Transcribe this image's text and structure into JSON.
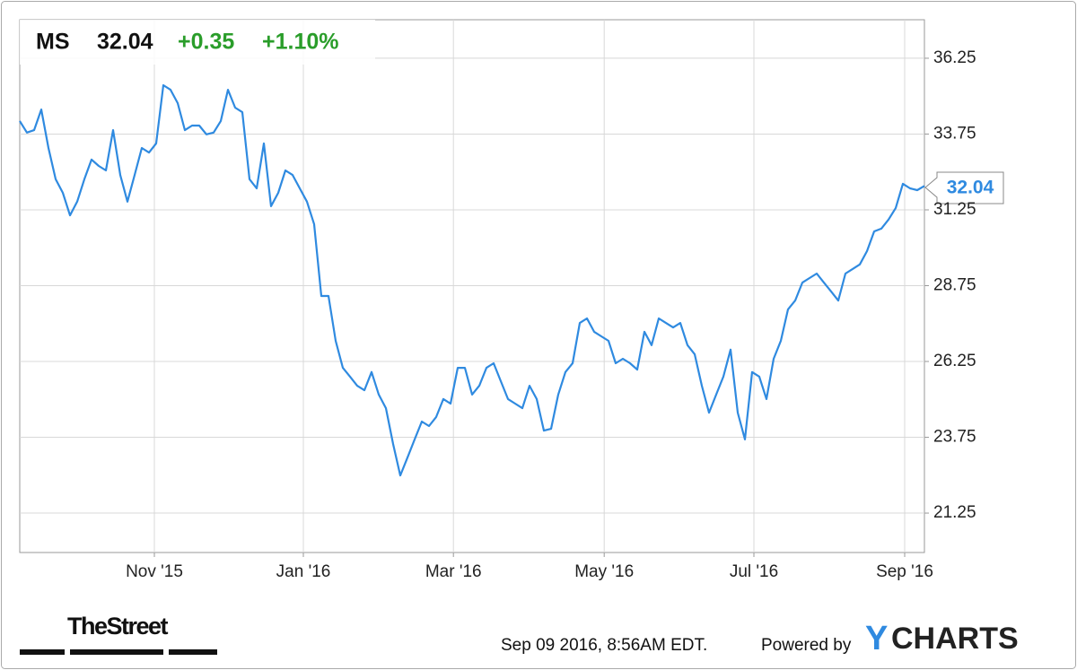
{
  "header": {
    "ticker": "MS",
    "price": "32.04",
    "change": "+0.35",
    "change_pct": "+1.10%"
  },
  "chart_data": {
    "type": "line",
    "series": [
      {
        "name": "MS",
        "color": "#2f8ae0",
        "values": [
          34.18,
          33.8,
          33.88,
          34.56,
          33.29,
          32.26,
          31.81,
          31.07,
          31.52,
          32.26,
          32.91,
          32.7,
          32.55,
          33.88,
          32.4,
          31.52,
          32.4,
          33.29,
          33.14,
          33.44,
          35.36,
          35.21,
          34.77,
          33.88,
          34.03,
          34.03,
          33.74,
          33.8,
          34.18,
          35.21,
          34.62,
          34.47,
          32.26,
          31.96,
          33.44,
          31.37,
          31.81,
          32.55,
          32.4,
          31.96,
          31.52,
          30.78,
          28.41,
          28.41,
          26.93,
          26.04,
          25.75,
          25.45,
          25.3,
          25.9,
          25.16,
          24.71,
          23.53,
          22.49,
          23.08,
          23.68,
          24.27,
          24.12,
          24.42,
          25.01,
          24.86,
          26.04,
          26.04,
          25.16,
          25.45,
          26.04,
          26.19,
          25.6,
          25.01,
          24.86,
          24.71,
          25.45,
          25.01,
          23.97,
          24.03,
          25.16,
          25.9,
          26.19,
          27.52,
          27.67,
          27.23,
          27.08,
          26.93,
          26.19,
          26.34,
          26.19,
          25.98,
          27.23,
          26.79,
          27.67,
          27.52,
          27.37,
          27.52,
          26.79,
          26.49,
          25.45,
          24.56,
          25.16,
          25.75,
          26.64,
          24.56,
          23.68,
          25.9,
          25.75,
          25.01,
          26.34,
          26.93,
          27.97,
          28.26,
          28.85,
          29.0,
          29.15,
          28.85,
          28.56,
          28.26,
          29.15,
          29.3,
          29.45,
          29.89,
          30.54,
          30.63,
          30.93,
          31.31,
          32.11,
          31.96,
          31.9,
          32.04
        ]
      }
    ],
    "xlim": [
      0,
      126
    ],
    "xticks": [
      {
        "value": 18.75,
        "label": "Nov '15"
      },
      {
        "value": 39.5,
        "label": "Jan '16"
      },
      {
        "value": 60.4,
        "label": "Mar '16"
      },
      {
        "value": 81.4,
        "label": "May '16"
      },
      {
        "value": 102.25,
        "label": "Jul '16"
      },
      {
        "value": 123.25,
        "label": "Sep '16"
      }
    ],
    "ylim": [
      19.95,
      37.52
    ],
    "yticks": [
      21.25,
      23.75,
      26.25,
      28.75,
      31.25,
      33.75,
      36.25
    ],
    "grid": true
  },
  "footer": {
    "brand": "TheStreet",
    "timestamp": "Sep 09 2016, 8:56AM EDT.",
    "powered": "Powered by",
    "logo_y": "Y",
    "logo_rest": "CHARTS"
  }
}
